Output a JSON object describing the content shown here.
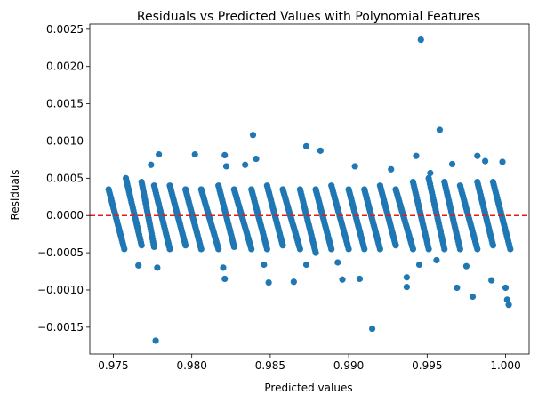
{
  "chart_data": {
    "type": "scatter",
    "title": "Residuals vs Predicted Values with Polynomial Features",
    "xlabel": "Predicted values",
    "ylabel": "Residuals",
    "xlim": [
      0.9735,
      1.0015
    ],
    "ylim": [
      -0.00186,
      0.00257
    ],
    "x_ticks": [
      0.975,
      0.98,
      0.985,
      0.99,
      0.995,
      1.0
    ],
    "x_tick_labels": [
      "0.975",
      "0.980",
      "0.985",
      "0.990",
      "0.995",
      "1.000"
    ],
    "y_ticks": [
      -0.0015,
      -0.001,
      -0.0005,
      0.0,
      0.0005,
      0.001,
      0.0015,
      0.002,
      0.0025
    ],
    "y_tick_labels": [
      "−0.0015",
      "−0.0010",
      "−0.0005",
      "0.0000",
      "0.0005",
      "0.0010",
      "0.0015",
      "0.0020",
      "0.0025"
    ],
    "grid": false,
    "marker_color": "#1f77b4",
    "reference_line": {
      "y": 0,
      "color": "#e41a1c",
      "style": "dashed"
    },
    "bands": [
      {
        "x_start": 0.9747,
        "x_end": 0.9757,
        "y_top": 0.00035,
        "y_bottom": -0.00045
      },
      {
        "x_start": 0.9758,
        "x_end": 0.9768,
        "y_top": 0.0005,
        "y_bottom": -0.0004
      },
      {
        "x_start": 0.9768,
        "x_end": 0.9776,
        "y_top": 0.00045,
        "y_bottom": -0.00042
      },
      {
        "x_start": 0.9776,
        "x_end": 0.9786,
        "y_top": 0.0004,
        "y_bottom": -0.00045
      },
      {
        "x_start": 0.9786,
        "x_end": 0.9796,
        "y_top": 0.0004,
        "y_bottom": -0.0004
      },
      {
        "x_start": 0.9796,
        "x_end": 0.9806,
        "y_top": 0.00035,
        "y_bottom": -0.00045
      },
      {
        "x_start": 0.9806,
        "x_end": 0.9817,
        "y_top": 0.00035,
        "y_bottom": -0.00045
      },
      {
        "x_start": 0.9817,
        "x_end": 0.9827,
        "y_top": 0.0004,
        "y_bottom": -0.00042
      },
      {
        "x_start": 0.9827,
        "x_end": 0.9838,
        "y_top": 0.00035,
        "y_bottom": -0.00045
      },
      {
        "x_start": 0.9838,
        "x_end": 0.9848,
        "y_top": 0.00035,
        "y_bottom": -0.00045
      },
      {
        "x_start": 0.9848,
        "x_end": 0.9858,
        "y_top": 0.0004,
        "y_bottom": -0.0004
      },
      {
        "x_start": 0.9858,
        "x_end": 0.9869,
        "y_top": 0.00035,
        "y_bottom": -0.00045
      },
      {
        "x_start": 0.9869,
        "x_end": 0.9879,
        "y_top": 0.00035,
        "y_bottom": -0.0005
      },
      {
        "x_start": 0.9879,
        "x_end": 0.9889,
        "y_top": 0.00035,
        "y_bottom": -0.00045
      },
      {
        "x_start": 0.9889,
        "x_end": 0.99,
        "y_top": 0.0004,
        "y_bottom": -0.00045
      },
      {
        "x_start": 0.99,
        "x_end": 0.991,
        "y_top": 0.00035,
        "y_bottom": -0.00045
      },
      {
        "x_start": 0.991,
        "x_end": 0.992,
        "y_top": 0.00035,
        "y_bottom": -0.00045
      },
      {
        "x_start": 0.992,
        "x_end": 0.993,
        "y_top": 0.0004,
        "y_bottom": -0.0004
      },
      {
        "x_start": 0.993,
        "x_end": 0.9941,
        "y_top": 0.00035,
        "y_bottom": -0.00045
      },
      {
        "x_start": 0.9941,
        "x_end": 0.9951,
        "y_top": 0.00045,
        "y_bottom": -0.00045
      },
      {
        "x_start": 0.9951,
        "x_end": 0.9961,
        "y_top": 0.0005,
        "y_bottom": -0.00045
      },
      {
        "x_start": 0.9961,
        "x_end": 0.9971,
        "y_top": 0.00045,
        "y_bottom": -0.00045
      },
      {
        "x_start": 0.9971,
        "x_end": 0.9982,
        "y_top": 0.0004,
        "y_bottom": -0.00045
      },
      {
        "x_start": 0.9982,
        "x_end": 0.9992,
        "y_top": 0.00045,
        "y_bottom": -0.0004
      },
      {
        "x_start": 0.9992,
        "x_end": 1.0003,
        "y_top": 0.00045,
        "y_bottom": -0.00045
      }
    ],
    "outliers": [
      {
        "x": 0.9777,
        "y": -0.00168
      },
      {
        "x": 0.9946,
        "y": 0.00236
      },
      {
        "x": 0.9958,
        "y": 0.00115
      },
      {
        "x": 0.9839,
        "y": 0.00108
      },
      {
        "x": 0.9873,
        "y": 0.00093
      },
      {
        "x": 0.9882,
        "y": 0.00087
      },
      {
        "x": 0.9779,
        "y": 0.00082
      },
      {
        "x": 0.9802,
        "y": 0.00082
      },
      {
        "x": 0.9821,
        "y": 0.00081
      },
      {
        "x": 0.9943,
        "y": 0.0008
      },
      {
        "x": 0.9982,
        "y": 0.0008
      },
      {
        "x": 0.9841,
        "y": 0.00076
      },
      {
        "x": 0.9987,
        "y": 0.00073
      },
      {
        "x": 0.9998,
        "y": 0.00072
      },
      {
        "x": 0.9966,
        "y": 0.00069
      },
      {
        "x": 0.9774,
        "y": 0.00068
      },
      {
        "x": 0.9834,
        "y": 0.00068
      },
      {
        "x": 0.9822,
        "y": 0.00066
      },
      {
        "x": 0.9904,
        "y": 0.00066
      },
      {
        "x": 0.9927,
        "y": 0.00062
      },
      {
        "x": 0.9952,
        "y": 0.00057
      },
      {
        "x": 0.9915,
        "y": -0.00152
      },
      {
        "x": 0.9979,
        "y": -0.00109
      },
      {
        "x": 1.0,
        "y": -0.00097
      },
      {
        "x": 1.0001,
        "y": -0.00113
      },
      {
        "x": 1.0002,
        "y": -0.0012
      },
      {
        "x": 0.9937,
        "y": -0.00096
      },
      {
        "x": 0.9969,
        "y": -0.00097
      },
      {
        "x": 0.9945,
        "y": -0.00066
      },
      {
        "x": 0.9937,
        "y": -0.00083
      },
      {
        "x": 0.9865,
        "y": -0.00089
      },
      {
        "x": 0.9849,
        "y": -0.0009
      },
      {
        "x": 0.9896,
        "y": -0.00086
      },
      {
        "x": 0.9907,
        "y": -0.00085
      },
      {
        "x": 0.9821,
        "y": -0.00085
      },
      {
        "x": 0.9991,
        "y": -0.00087
      },
      {
        "x": 0.9778,
        "y": -0.0007
      },
      {
        "x": 0.9766,
        "y": -0.00067
      },
      {
        "x": 0.9846,
        "y": -0.00066
      },
      {
        "x": 0.9893,
        "y": -0.00063
      },
      {
        "x": 0.9873,
        "y": -0.00066
      },
      {
        "x": 0.9975,
        "y": -0.00068
      },
      {
        "x": 0.9956,
        "y": -0.0006
      },
      {
        "x": 0.982,
        "y": -0.0007
      }
    ]
  }
}
